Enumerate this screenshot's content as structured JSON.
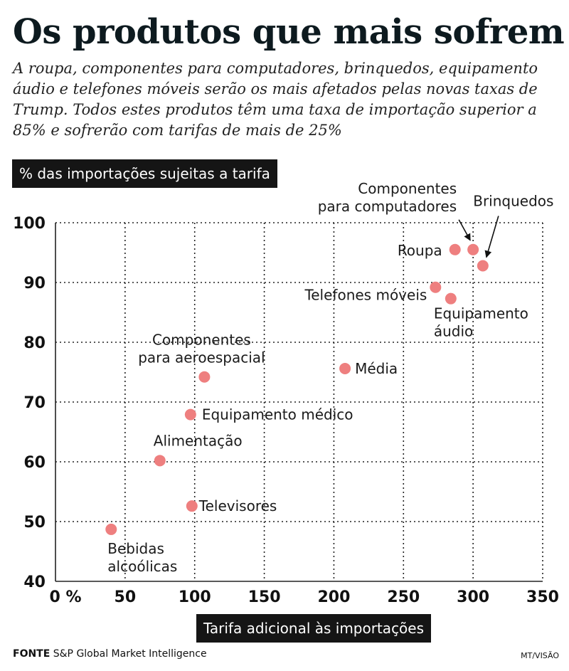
{
  "chart_data": {
    "type": "scatter",
    "title": "Os produtos que mais sofrem",
    "subtitle": "A roupa, componentes para computadores, brinquedos, equipamento áudio e telefones móveis serão os mais afetados pelas novas taxas de Trump. Todos estes produtos têm uma taxa de importação superior a 85% e sofrerão com tarifas de mais de 25%",
    "ylabel": "% das importações sujeitas a tarifa",
    "xlabel": "Tarifa adicional às importações",
    "xlim": [
      0,
      350
    ],
    "ylim": [
      40,
      100
    ],
    "xticks": [
      "0 %",
      "50",
      "100",
      "150",
      "200",
      "250",
      "300",
      "350"
    ],
    "yticks": [
      "100",
      "90",
      "80",
      "70",
      "60",
      "50",
      "40"
    ],
    "grid": true,
    "point_color": "#ee7f7f",
    "points": [
      {
        "label": [
          "Componentes",
          "para computadores"
        ],
        "x": 300,
        "y": 95.5
      },
      {
        "label": [
          "Brinquedos"
        ],
        "x": 307,
        "y": 92.8
      },
      {
        "label": [
          "Roupa"
        ],
        "x": 287,
        "y": 95.5
      },
      {
        "label": [
          "Telefones móveis"
        ],
        "x": 273,
        "y": 89.2
      },
      {
        "label": [
          "Equipamento",
          "áudio"
        ],
        "x": 284,
        "y": 87.3
      },
      {
        "label": [
          "Média"
        ],
        "x": 208,
        "y": 75.6
      },
      {
        "label": [
          "Componentes",
          "para aeroespacial"
        ],
        "x": 107,
        "y": 74.2
      },
      {
        "label": [
          "Equipamento médico"
        ],
        "x": 97,
        "y": 67.9
      },
      {
        "label": [
          "Alimentação"
        ],
        "x": 75,
        "y": 60.2
      },
      {
        "label": [
          "Televisores"
        ],
        "x": 98,
        "y": 52.6
      },
      {
        "label": [
          "Bebidas",
          "alcoólicas"
        ],
        "x": 40,
        "y": 48.7
      }
    ]
  },
  "footer": {
    "source_label": "FONTE",
    "source_text": "S&P Global Market Intelligence",
    "credit": "MT/VISÃO"
  }
}
